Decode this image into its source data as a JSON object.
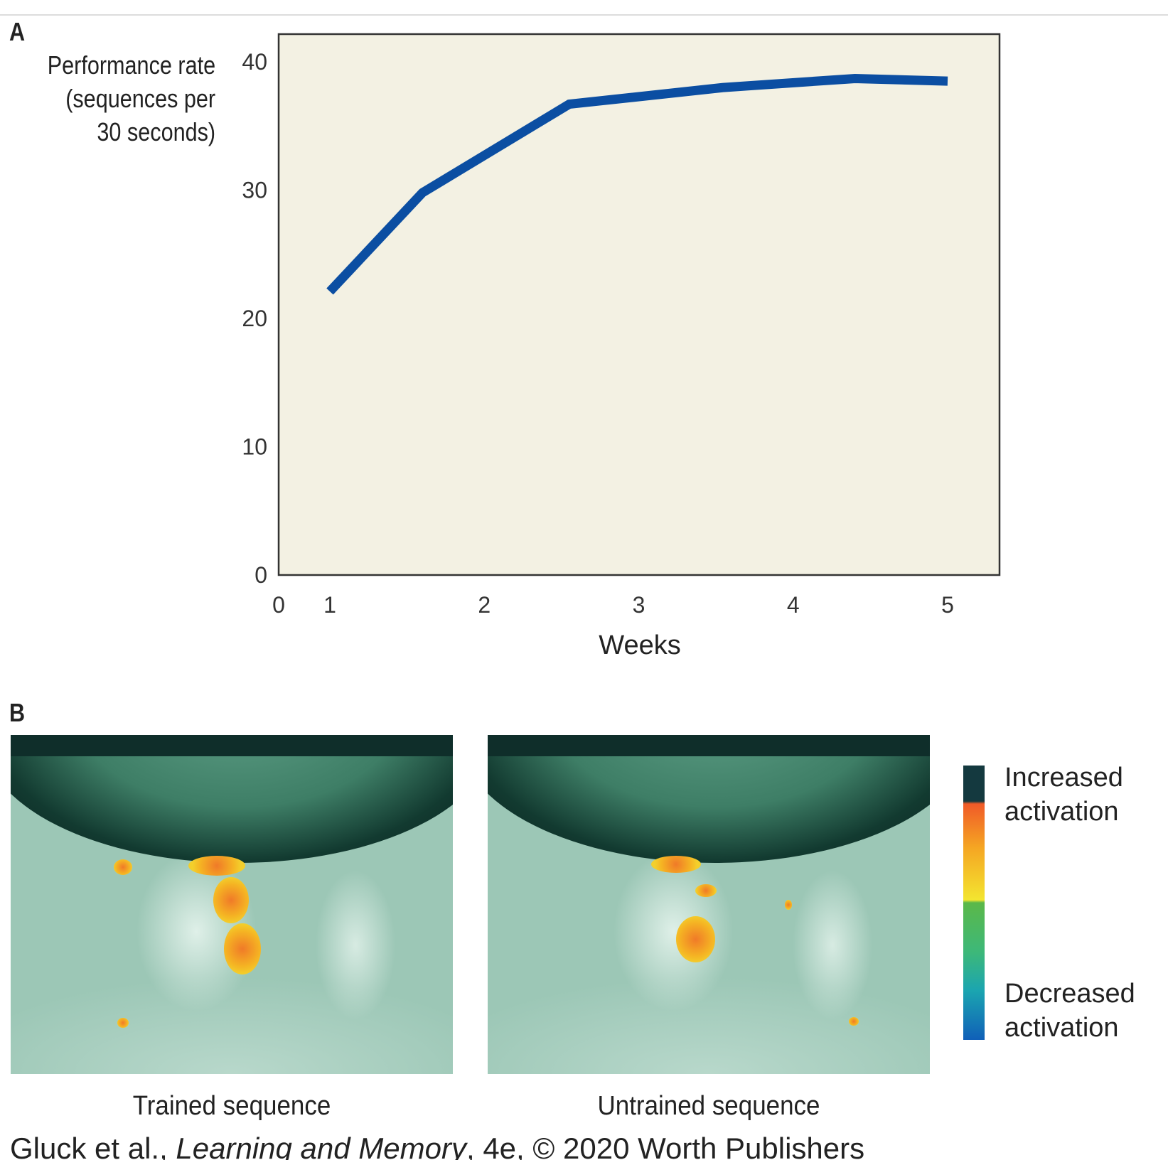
{
  "panel_a_label": "A",
  "panel_b_label": "B",
  "chart_data": {
    "type": "line",
    "title": "",
    "xlabel": "Weeks",
    "ylabel_lines": [
      "Performance rate",
      "(sequences per",
      "30 seconds)"
    ],
    "x_ticks": [
      "0",
      "1",
      "2",
      "3",
      "4",
      "5"
    ],
    "y_ticks": [
      "0",
      "10",
      "20",
      "30",
      "40"
    ],
    "ylim": [
      0,
      40
    ],
    "xlim": [
      0,
      5
    ],
    "grid": false,
    "series": [
      {
        "name": "Performance",
        "color": "#0b4ea2",
        "x": [
          1.0,
          1.6,
          2.55,
          3.55,
          4.4,
          5.0
        ],
        "y": [
          22.1,
          29.8,
          36.7,
          38.0,
          38.7,
          38.5
        ]
      }
    ],
    "plot_background": "#f3f1e3"
  },
  "panel_b": {
    "images": [
      {
        "caption": "Trained sequence"
      },
      {
        "caption": "Untrained sequence"
      }
    ],
    "colorbar": {
      "top_label": "Increased activation",
      "bottom_label": "Decreased activation"
    }
  },
  "credit": {
    "prefix": "Gluck et al., ",
    "title": "Learning and Memory",
    "suffix": ", 4e, © 2020 Worth Publishers"
  }
}
